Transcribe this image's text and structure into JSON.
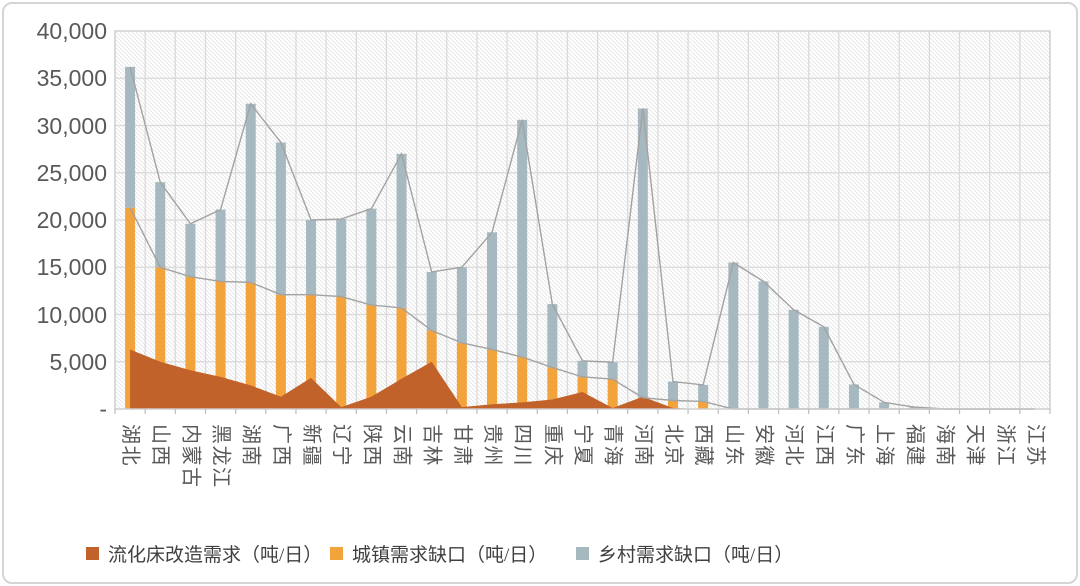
{
  "figure": {
    "background": "#ffffff",
    "border_color": "#d5d5d5"
  },
  "chart_data": {
    "type": "bar",
    "subtype": "stacked-columns-with-area-overlay",
    "title": "",
    "xlabel": "",
    "ylabel": "",
    "categories": [
      "湖北",
      "山西",
      "内蒙古",
      "黑龙江",
      "湖南",
      "广西",
      "新疆",
      "辽宁",
      "陕西",
      "云南",
      "吉林",
      "甘肃",
      "贵州",
      "四川",
      "重庆",
      "宁夏",
      "青海",
      "河南",
      "北京",
      "西藏",
      "山东",
      "安徽",
      "河北",
      "江西",
      "广东",
      "上海",
      "福建",
      "海南",
      "天津",
      "浙江",
      "江苏"
    ],
    "series": [
      {
        "name": "流化床改造需求（吨/日）",
        "chart_type": "area",
        "color": "#C2622B",
        "values": [
          6300,
          5000,
          4100,
          3400,
          2500,
          1300,
          3300,
          200,
          1300,
          3200,
          5000,
          200,
          500,
          700,
          1000,
          1800,
          100,
          1300,
          100,
          0,
          0,
          0,
          0,
          0,
          0,
          0,
          0,
          0,
          0,
          0,
          0
        ]
      },
      {
        "name": "城镇需求缺口（吨/日）",
        "chart_type": "column-stacked",
        "color": "#F2A33C",
        "values": [
          21300,
          15000,
          14000,
          13500,
          13400,
          12100,
          12100,
          11900,
          11000,
          10700,
          8300,
          7000,
          6300,
          5500,
          4400,
          3400,
          3150,
          1200,
          900,
          800,
          0,
          0,
          0,
          0,
          0,
          0,
          0,
          0,
          0,
          0,
          0
        ]
      },
      {
        "name": "乡村需求缺口（吨/日）",
        "chart_type": "column-stacked",
        "color": "#A6B8C0",
        "values": [
          14900,
          9000,
          5600,
          7600,
          18900,
          16100,
          7900,
          8200,
          10200,
          16300,
          6200,
          8000,
          12400,
          25100,
          6700,
          1700,
          1800,
          30600,
          2000,
          1750,
          15500,
          13500,
          10500,
          8700,
          2600,
          700,
          200,
          0,
          0,
          0,
          0
        ]
      }
    ],
    "stacked_totals": [
      36200,
      24000,
      19600,
      21100,
      32300,
      28200,
      20000,
      20100,
      21200,
      27000,
      14500,
      15000,
      18700,
      30600,
      11100,
      5100,
      4950,
      31800,
      2900,
      2550,
      15500,
      13500,
      10500,
      8700,
      2600,
      700,
      200,
      0,
      0,
      0,
      0
    ],
    "y_axis": {
      "min": 0,
      "max": 40000,
      "tick_interval": 5000,
      "tick_labels": [
        "40,000",
        "35,000",
        "30,000",
        "25,000",
        "20,000",
        "15,000",
        "10,000",
        "5,000",
        "-"
      ]
    },
    "grid": {
      "horizontal": true,
      "vertical": true,
      "color": "#dadada"
    },
    "plot_fill_pattern": "light-diagonal-hatch",
    "series_lines": {
      "shown": true,
      "color": "#a3a3a3"
    },
    "legend_position": "bottom"
  },
  "legend": {
    "items": [
      {
        "label": "流化床改造需求（吨/日）",
        "color": "#C2622B"
      },
      {
        "label": "城镇需求缺口（吨/日）",
        "color": "#F2A33C"
      },
      {
        "label": "乡村需求缺口（吨/日）",
        "color": "#A6B8C0"
      }
    ]
  }
}
